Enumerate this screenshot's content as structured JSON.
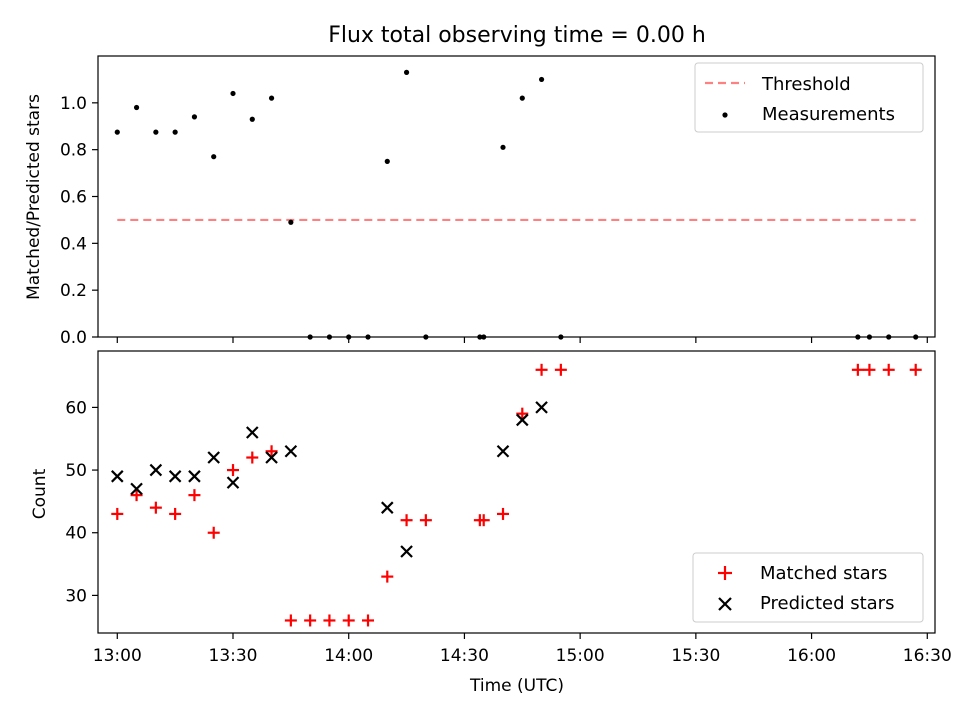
{
  "figure": {
    "title": "Flux total observing time = 0.00 h"
  },
  "chart_data": [
    {
      "type": "scatter",
      "title": "Flux total observing time = 0.00 h",
      "xlabel": "",
      "ylabel": "Matched/Predicted stars",
      "xlim": [
        "12:55",
        "16:32"
      ],
      "ylim": [
        0,
        1.2
      ],
      "yticks": [
        "0.0",
        "0.2",
        "0.4",
        "0.6",
        "0.8",
        "1.0"
      ],
      "xticks": [
        "13:00",
        "13:30",
        "14:00",
        "14:30",
        "15:00",
        "15:30",
        "16:00",
        "16:30"
      ],
      "grid": false,
      "legend": "top-right",
      "series": [
        {
          "name": "Threshold",
          "kind": "line",
          "style": "dashed",
          "color": "#ff8080",
          "points": [
            [
              "13:00",
              0.5
            ],
            [
              "16:27",
              0.5
            ]
          ]
        },
        {
          "name": "Measurements",
          "kind": "scatter",
          "marker": "dot",
          "color": "#000000",
          "points": [
            [
              "13:00",
              0.875
            ],
            [
              "13:05",
              0.98
            ],
            [
              "13:10",
              0.875
            ],
            [
              "13:15",
              0.875
            ],
            [
              "13:20",
              0.94
            ],
            [
              "13:25",
              0.77
            ],
            [
              "13:30",
              1.04
            ],
            [
              "13:35",
              0.93
            ],
            [
              "13:40",
              1.02
            ],
            [
              "13:45",
              0.49
            ],
            [
              "13:50",
              0.0
            ],
            [
              "13:55",
              0.0
            ],
            [
              "14:00",
              0.0
            ],
            [
              "14:05",
              0.0
            ],
            [
              "14:10",
              0.75
            ],
            [
              "14:15",
              1.13
            ],
            [
              "14:20",
              0.0
            ],
            [
              "14:34",
              0.0
            ],
            [
              "14:35",
              0.0
            ],
            [
              "14:40",
              0.81
            ],
            [
              "14:45",
              1.02
            ],
            [
              "14:50",
              1.1
            ],
            [
              "14:55",
              0.0
            ],
            [
              "16:12",
              0.0
            ],
            [
              "16:15",
              0.0
            ],
            [
              "16:20",
              0.0
            ],
            [
              "16:27",
              0.0
            ]
          ]
        }
      ]
    },
    {
      "type": "scatter",
      "title": "",
      "xlabel": "Time (UTC)",
      "ylabel": "Count",
      "xlim": [
        "12:55",
        "16:32"
      ],
      "ylim": [
        24,
        69
      ],
      "yticks": [
        "30",
        "40",
        "50",
        "60"
      ],
      "xticks": [
        "13:00",
        "13:30",
        "14:00",
        "14:30",
        "15:00",
        "15:30",
        "16:00",
        "16:30"
      ],
      "grid": false,
      "legend": "bottom-right",
      "series": [
        {
          "name": "Matched stars",
          "kind": "scatter",
          "marker": "plus",
          "color": "#ff0000",
          "points": [
            [
              "13:00",
              43
            ],
            [
              "13:05",
              46
            ],
            [
              "13:10",
              44
            ],
            [
              "13:15",
              43
            ],
            [
              "13:20",
              46
            ],
            [
              "13:25",
              40
            ],
            [
              "13:30",
              50
            ],
            [
              "13:35",
              52
            ],
            [
              "13:40",
              53
            ],
            [
              "13:45",
              26
            ],
            [
              "13:50",
              26
            ],
            [
              "13:55",
              26
            ],
            [
              "14:00",
              26
            ],
            [
              "14:05",
              26
            ],
            [
              "14:10",
              33
            ],
            [
              "14:15",
              42
            ],
            [
              "14:20",
              42
            ],
            [
              "14:34",
              42
            ],
            [
              "14:35",
              42
            ],
            [
              "14:40",
              43
            ],
            [
              "14:45",
              59
            ],
            [
              "14:50",
              66
            ],
            [
              "14:55",
              66
            ],
            [
              "16:12",
              66
            ],
            [
              "16:15",
              66
            ],
            [
              "16:20",
              66
            ],
            [
              "16:27",
              66
            ]
          ]
        },
        {
          "name": "Predicted stars",
          "kind": "scatter",
          "marker": "x",
          "color": "#000000",
          "points": [
            [
              "13:00",
              49
            ],
            [
              "13:05",
              47
            ],
            [
              "13:10",
              50
            ],
            [
              "13:15",
              49
            ],
            [
              "13:20",
              49
            ],
            [
              "13:25",
              52
            ],
            [
              "13:30",
              48
            ],
            [
              "13:35",
              56
            ],
            [
              "13:40",
              52
            ],
            [
              "13:45",
              53
            ],
            [
              "14:10",
              44
            ],
            [
              "14:15",
              37
            ],
            [
              "14:40",
              53
            ],
            [
              "14:45",
              58
            ],
            [
              "14:50",
              60
            ]
          ]
        }
      ]
    }
  ]
}
